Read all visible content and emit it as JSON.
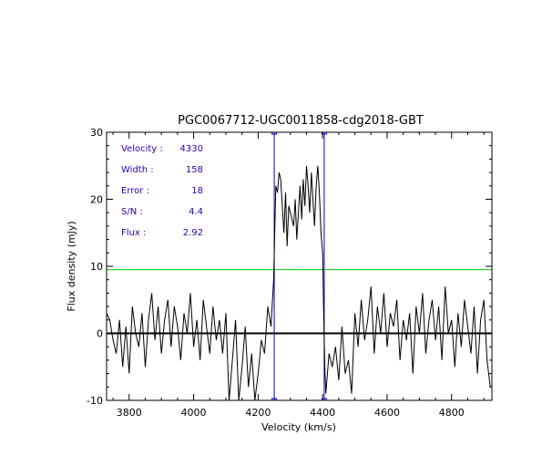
{
  "chart_data": {
    "type": "line",
    "title": "PGC0067712-UGC0011858-cdg2018-GBT",
    "xlabel": "Velocity (km/s)",
    "ylabel": "Flux density (mJy)",
    "xlim": [
      3730,
      4925
    ],
    "ylim": [
      -10,
      30
    ],
    "xticks": [
      3800,
      4000,
      4200,
      4400,
      4600,
      4800
    ],
    "yticks": [
      -10,
      0,
      10,
      20,
      30
    ],
    "grid": false,
    "annotations": [
      {
        "label": "Velocity :",
        "value": "4330"
      },
      {
        "label": "Width :",
        "value": "158"
      },
      {
        "label": "Error :",
        "value": "18"
      },
      {
        "label": "S/N :",
        "value": "4.4"
      },
      {
        "label": "Flux :",
        "value": "2.92"
      }
    ],
    "reference_lines": {
      "zero_level": 0,
      "threshold_level": 9.5,
      "window_edges": [
        4250,
        4405
      ]
    },
    "colors": {
      "spectrum": "#000000",
      "threshold": "#00cc00",
      "window": "#0000cc",
      "annotation_text": "#2a00b0"
    },
    "series": [
      {
        "x": [
          3730,
          3740,
          3750,
          3760,
          3770,
          3780,
          3790,
          3800,
          3810,
          3820,
          3830,
          3840,
          3850,
          3860,
          3870,
          3880,
          3890,
          3900,
          3910,
          3920,
          3930,
          3940,
          3950,
          3960,
          3970,
          3980,
          3990,
          4000,
          4010,
          4020,
          4030,
          4040,
          4050,
          4060,
          4070,
          4080,
          4090,
          4100,
          4110,
          4120,
          4130,
          4140,
          4150,
          4160,
          4170,
          4180,
          4190,
          4200,
          4210,
          4220,
          4230,
          4240,
          4248,
          4255,
          4260,
          4265,
          4270,
          4275,
          4280,
          4285,
          4290,
          4295,
          4300,
          4305,
          4310,
          4315,
          4320,
          4325,
          4330,
          4335,
          4340,
          4345,
          4350,
          4355,
          4360,
          4365,
          4370,
          4375,
          4380,
          4385,
          4390,
          4395,
          4400,
          4403,
          4407,
          4410,
          4420,
          4430,
          4440,
          4450,
          4460,
          4470,
          4480,
          4490,
          4500,
          4510,
          4520,
          4530,
          4540,
          4550,
          4560,
          4570,
          4580,
          4590,
          4600,
          4610,
          4620,
          4630,
          4640,
          4650,
          4660,
          4670,
          4680,
          4690,
          4700,
          4710,
          4720,
          4730,
          4740,
          4750,
          4760,
          4770,
          4780,
          4790,
          4800,
          4810,
          4820,
          4830,
          4840,
          4850,
          4860,
          4870,
          4880,
          4890,
          4900,
          4910,
          4920
        ],
        "values": [
          3,
          2,
          -1,
          -3,
          2,
          -5,
          1,
          -6,
          4,
          0,
          -2,
          3,
          -5,
          2,
          6,
          -1,
          4,
          -3,
          2,
          5,
          -2,
          4,
          1,
          -4,
          3,
          0,
          6,
          -2,
          2,
          -4,
          5,
          1,
          -3,
          4,
          -1,
          2,
          -3,
          3,
          -10,
          -4,
          2,
          -10,
          -5,
          1,
          -8,
          -3,
          -10,
          -6,
          -1,
          -3,
          4,
          1,
          8,
          22,
          21,
          24,
          23,
          19,
          15,
          21,
          13,
          19,
          18,
          17,
          16,
          20,
          14,
          18,
          22,
          17,
          23,
          19,
          25,
          22,
          18,
          24,
          20,
          16,
          22,
          25,
          21,
          15,
          12,
          4,
          -5,
          -9,
          -3,
          -5,
          -2,
          -7,
          1,
          -6,
          -4,
          -9,
          3,
          -2,
          5,
          -1,
          2,
          7,
          -3,
          4,
          0,
          6,
          -2,
          3,
          1,
          5,
          -4,
          2,
          -1,
          3,
          -6,
          4,
          0,
          6,
          -3,
          2,
          5,
          -1,
          4,
          -4,
          7,
          0,
          2,
          -5,
          3,
          -2,
          5,
          1,
          -3,
          4,
          -6,
          2,
          5,
          -4,
          -8
        ]
      }
    ]
  }
}
